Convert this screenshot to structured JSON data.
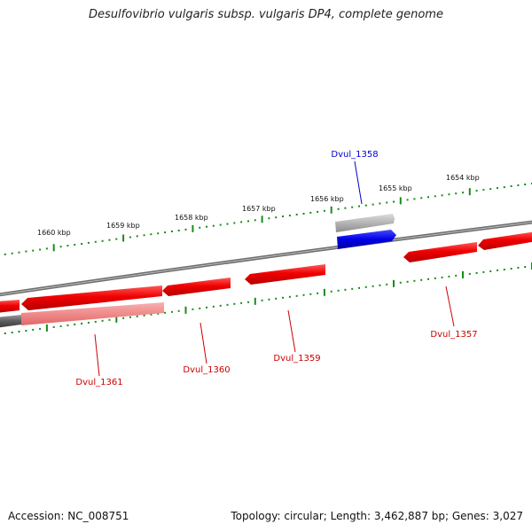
{
  "title": "Desulfovibrio vulgaris subsp. vulgaris DP4, complete genome",
  "footer": {
    "accession": "Accession: NC_008751",
    "stats": "Topology: circular; Length: 3,462,887 bp; Genes: 3,027"
  },
  "colors": {
    "backbone": "#6e6e6e",
    "tick": "#1a8a1a",
    "forward_gene": "#e00000",
    "reverse_gene": "#e00000",
    "pseudo_gene": "#f08a8a",
    "rna_gene": "#0000e6",
    "hypothetical_gene": "#b4b4b4",
    "red_label": "#cc0000",
    "blue_label": "#0000cc"
  },
  "kbp_labels": [
    "1654 kbp",
    "1655 kbp",
    "1656 kbp",
    "1657 kbp",
    "1658 kbp",
    "1659 kbp",
    "1660 kbp"
  ],
  "gene_labels": [
    {
      "name": "Dvul_1358",
      "color": "blue"
    },
    {
      "name": "Dvul_1357",
      "color": "red"
    },
    {
      "name": "Dvul_1359",
      "color": "red"
    },
    {
      "name": "Dvul_1360",
      "color": "red"
    },
    {
      "name": "Dvul_1361",
      "color": "red"
    }
  ]
}
